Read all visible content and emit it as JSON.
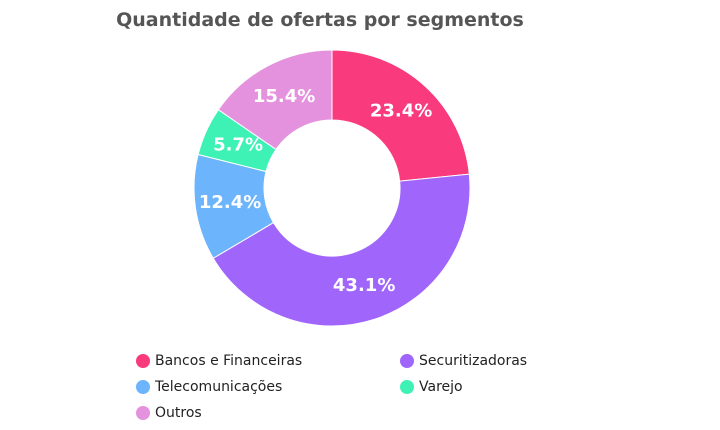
{
  "chart_data": {
    "type": "donut",
    "title": "Quantidade de ofertas por segmentos",
    "categories": [
      "Bancos e Financeiras",
      "Securitizadoras",
      "Telecomunicações",
      "Varejo",
      "Outros"
    ],
    "values": [
      23.4,
      43.1,
      12.4,
      5.7,
      15.4
    ],
    "value_labels": [
      "23.4%",
      "43.1%",
      "12.4%",
      "5.7%",
      "15.4%"
    ],
    "colors": [
      "#f93a7c",
      "#a066fb",
      "#6cb4fc",
      "#3ef2b6",
      "#e491de"
    ]
  }
}
